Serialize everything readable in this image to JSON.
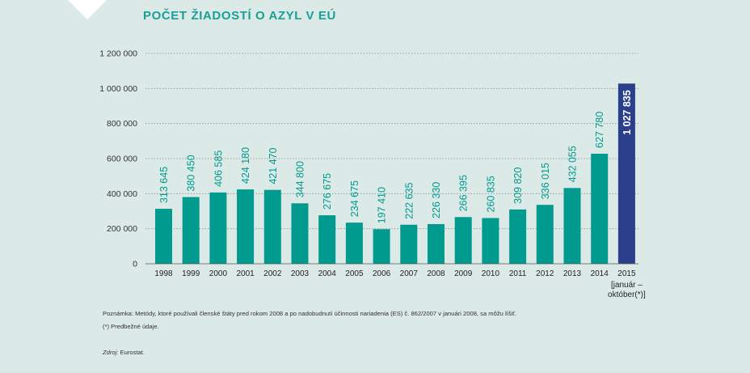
{
  "title": "POČET ŽIADOSTÍ O AZYL V EÚ",
  "note1": "Poznámka: Metódy, ktoré používali členské štáty pred rokom 2008 a po nadobudnutí účinnosti nariadenia (ES) č. 862/2007 v januári 2008, sa môžu líšiť.",
  "note2": "(*) Predbežné údaje.",
  "source_label": "Zdroj:",
  "source_value": "Eurostat.",
  "colors": {
    "bar": "#009a8e",
    "highlight": "#2c3f8c",
    "label": "#009a8e",
    "grid": "#8f8f8f"
  },
  "chart_data": {
    "type": "bar",
    "title": "POČET ŽIADOSTÍ O AZYL V EÚ",
    "xlabel": "",
    "ylabel": "",
    "ylim": [
      0,
      1200000
    ],
    "grid": true,
    "yticks": [
      "0",
      "200 000",
      "400 000",
      "600 000",
      "800 000",
      "1 000 000",
      "1 200 000"
    ],
    "categories": [
      "1998",
      "1999",
      "2000",
      "2001",
      "2002",
      "2003",
      "2004",
      "2005",
      "2006",
      "2007",
      "2008",
      "2009",
      "2010",
      "2011",
      "2012",
      "2013",
      "2014",
      "2015"
    ],
    "category_sublabels": {
      "2015": [
        "[január –",
        "október(*)]"
      ]
    },
    "values": [
      313645,
      380450,
      406585,
      424180,
      421470,
      344800,
      276675,
      234675,
      197410,
      222635,
      226330,
      266395,
      260835,
      309820,
      336015,
      432055,
      627780,
      1027835
    ],
    "value_labels": [
      "313 645",
      "380 450",
      "406 585",
      "424 180",
      "421 470",
      "344 800",
      "276 675",
      "234 675",
      "197 410",
      "222 635",
      "226 330",
      "266 395",
      "260 835",
      "309 820",
      "336 015",
      "432 055",
      "627 780",
      "1 027 835"
    ],
    "highlight_index": 17
  }
}
